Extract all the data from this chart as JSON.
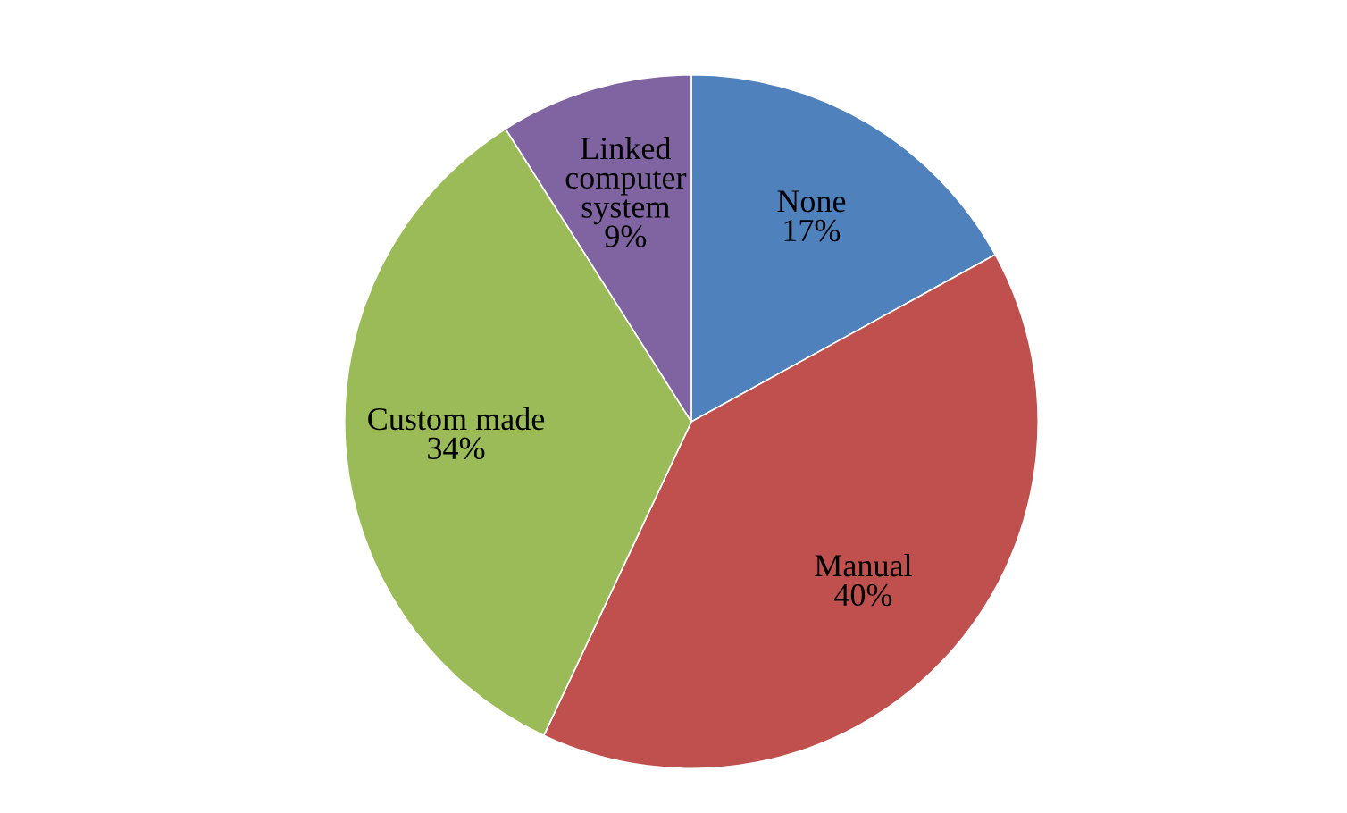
{
  "chart_data": {
    "type": "pie",
    "categories": [
      "None",
      "Manual",
      "Custom made",
      "Linked computer system"
    ],
    "values": [
      17,
      40,
      34,
      9
    ],
    "value_labels": [
      "17%",
      "40%",
      "34%",
      "9%"
    ],
    "colors": [
      "#4f81bd",
      "#c0504d",
      "#9bbb59",
      "#8064a2"
    ],
    "legend": false
  }
}
